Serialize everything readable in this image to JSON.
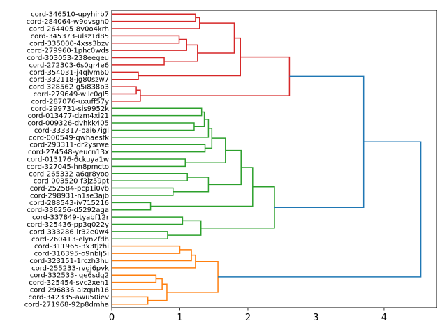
{
  "chart_data": {
    "type": "dendrogram",
    "orientation": "left",
    "title": "",
    "xlabel": "",
    "ylabel": "",
    "xlim": [
      0,
      4.77
    ],
    "xticks": [
      0,
      1,
      2,
      3,
      4
    ],
    "xtick_labels": [
      "0",
      "1",
      "2",
      "3",
      "4"
    ],
    "grid": false,
    "colors": {
      "above_threshold": "#1f77b4",
      "red": "#d62728",
      "green": "#2ca02c",
      "orange": "#ff7f0e"
    },
    "leaves": [
      "cord-346510-upyhirb7",
      "cord-284064-w9qvsgh0",
      "cord-264405-8v0o4krh",
      "cord-345373-ulsz1d85",
      "cord-335000-4xss3bzv",
      "cord-279960-1phc0wds",
      "cord-303053-238eegeu",
      "cord-272303-6s0qr4e6",
      "cord-354031-j4qlvm60",
      "cord-332118-jg80szw7",
      "cord-328562-g5i838b3",
      "cord-279649-wllc0gl5",
      "cord-287076-uxuff57y",
      "cord-299731-sis9952k",
      "cord-013477-dzm4xi21",
      "cord-009326-dvhkk405",
      "cord-333317-oai67igl",
      "cord-000549-qwhaesfk",
      "cord-293311-dr2ysrwe",
      "cord-274548-yeucn13x",
      "cord-013176-6ckuya1w",
      "cord-327045-hn8pmcto",
      "cord-265332-a6qr8yoo",
      "cord-003520-f3jz59pt",
      "cord-252584-pcp1i0vb",
      "cord-298931-n1se3ajb",
      "cord-288543-iv715216",
      "cord-336256-d5292aga",
      "cord-337849-tyabf12r",
      "cord-325436-pp3q022y",
      "cord-333286-lr32e0w4",
      "cord-260413-elyn2fdh",
      "cord-311965-3x3tjzhi",
      "cord-316395-o9nblj5i",
      "cord-323151-1rczh3hu",
      "cord-255233-rvgj6pvk",
      "cord-332533-iqe6sdq2",
      "cord-325454-svc2xeh1",
      "cord-296836-aizquh16",
      "cord-342335-awu50iev",
      "cord-271968-92p8dmha"
    ],
    "tree": {
      "h": 4.54,
      "color": "#1f77b4",
      "c": [
        {
          "h": 3.7,
          "color": "#1f77b4",
          "c": [
            {
              "h": 2.61,
              "color": "#d62728",
              "c": [
                {
                  "h": 1.89,
                  "c": [
                    {
                      "h": 1.8,
                      "c": [
                        {
                          "h": 1.29,
                          "c": [
                            {
                              "h": 1.23,
                              "c": [
                                0,
                                1
                              ]
                            },
                            2
                          ]
                        },
                        {
                          "h": 1.26,
                          "c": [
                            {
                              "h": 1.1,
                              "c": [
                                {
                                  "h": 0.99,
                                  "c": [
                                    3,
                                    4
                                  ]
                                },
                                5
                              ]
                            },
                            {
                              "h": 0.77,
                              "c": [
                                6,
                                7
                              ]
                            }
                          ]
                        }
                      ]
                    },
                    {
                      "h": 0.39,
                      "c": [
                        8,
                        9
                      ]
                    }
                  ]
                },
                {
                  "h": 0.42,
                  "c": [
                    {
                      "h": 0.36,
                      "c": [
                        10,
                        11
                      ]
                    },
                    12
                  ]
                }
              ]
            },
            {
              "h": 2.39,
              "color": "#2ca02c",
              "c": [
                {
                  "h": 2.07,
                  "c": [
                    {
                      "h": 1.9,
                      "c": [
                        {
                          "h": 1.67,
                          "c": [
                            {
                              "h": 1.47,
                              "c": [
                                {
                                  "h": 1.42,
                                  "c": [
                                    {
                                      "h": 1.36,
                                      "c": [
                                        {
                                          "h": 1.32,
                                          "c": [
                                            13,
                                            14
                                          ]
                                        },
                                        {
                                          "h": 1.21,
                                          "c": [
                                            15,
                                            16
                                          ]
                                        }
                                      ]
                                    },
                                    17
                                  ]
                                },
                                {
                                  "h": 1.37,
                                  "c": [
                                    18,
                                    19
                                  ]
                                }
                              ]
                            },
                            {
                              "h": 1.08,
                              "c": [
                                20,
                                21
                              ]
                            }
                          ]
                        },
                        {
                          "h": 1.42,
                          "c": [
                            {
                              "h": 1.11,
                              "c": [
                                22,
                                23
                              ]
                            },
                            {
                              "h": 0.9,
                              "c": [
                                24,
                                25
                              ]
                            }
                          ]
                        }
                      ]
                    },
                    {
                      "h": 0.57,
                      "c": [
                        26,
                        27
                      ]
                    }
                  ]
                },
                {
                  "h": 1.31,
                  "c": [
                    {
                      "h": 1.04,
                      "c": [
                        28,
                        29
                      ]
                    },
                    {
                      "h": 0.82,
                      "c": [
                        30,
                        31
                      ]
                    }
                  ]
                }
              ]
            }
          ]
        },
        {
          "h": 1.56,
          "color": "#ff7f0e",
          "c": [
            {
              "h": 1.23,
              "c": [
                {
                  "h": 1.17,
                  "c": [
                    {
                      "h": 1.0,
                      "c": [
                        32,
                        33
                      ]
                    },
                    34
                  ]
                },
                35
              ]
            },
            {
              "h": 0.81,
              "c": [
                {
                  "h": 0.74,
                  "c": [
                    {
                      "h": 0.65,
                      "c": [
                        36,
                        37
                      ]
                    },
                    38
                  ]
                },
                {
                  "h": 0.53,
                  "c": [
                    39,
                    40
                  ]
                }
              ]
            }
          ]
        }
      ]
    }
  }
}
